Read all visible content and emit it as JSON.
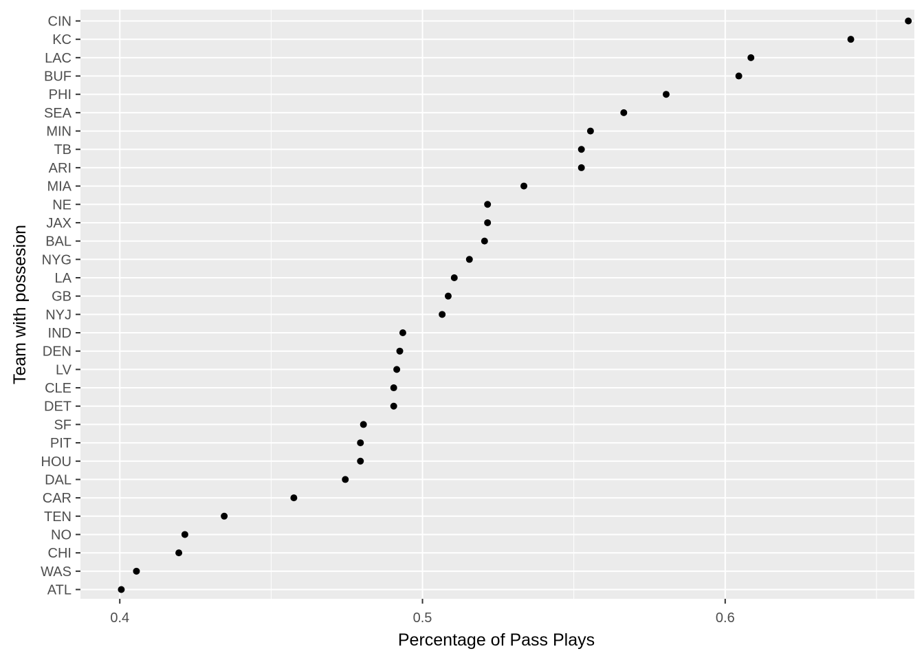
{
  "chart_data": {
    "type": "scatter",
    "title": "",
    "xlabel": "Percentage of Pass Plays",
    "ylabel": "Team with possesion",
    "xlim": [
      0.387,
      0.6625
    ],
    "xticks": [
      0.4,
      0.5,
      0.6
    ],
    "xtick_labels": [
      "0.4",
      "0.5",
      "0.6"
    ],
    "grid": true,
    "legend": "none",
    "colors": {
      "panel": "#ebebeb",
      "grid": "#ffffff",
      "point": "#000000",
      "tick_text": "#4d4d4d"
    },
    "categories": [
      "CIN",
      "KC",
      "LAC",
      "BUF",
      "PHI",
      "SEA",
      "MIN",
      "TB",
      "ARI",
      "MIA",
      "NE",
      "JAX",
      "BAL",
      "NYG",
      "LA",
      "GB",
      "NYJ",
      "IND",
      "DEN",
      "LV",
      "CLE",
      "DET",
      "SF",
      "PIT",
      "HOU",
      "DAL",
      "CAR",
      "TEN",
      "NO",
      "CHI",
      "WAS",
      "ATL"
    ],
    "values": [
      0.6605,
      0.6415,
      0.6085,
      0.6045,
      0.5805,
      0.5665,
      0.5555,
      0.5525,
      0.5525,
      0.5335,
      0.5215,
      0.5215,
      0.5205,
      0.5155,
      0.5105,
      0.5085,
      0.5065,
      0.4935,
      0.4925,
      0.4915,
      0.4905,
      0.4905,
      0.4805,
      0.4795,
      0.4795,
      0.4745,
      0.4575,
      0.4345,
      0.4215,
      0.4195,
      0.4055,
      0.4005
    ]
  }
}
